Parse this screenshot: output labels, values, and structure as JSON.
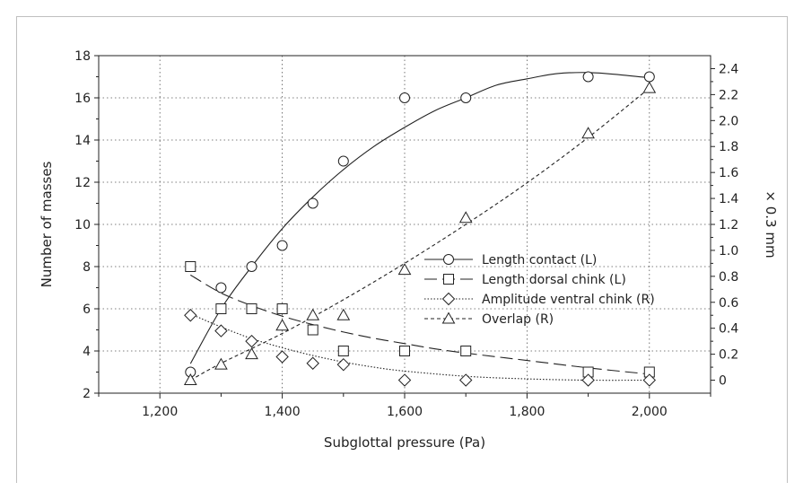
{
  "chart_data": {
    "type": "line",
    "xlabel": "Subglottal pressure (Pa)",
    "ylabel": "Number of masses",
    "y2label": "× 0.3 mm",
    "xlim": [
      1100,
      2100
    ],
    "ylim": [
      2,
      18
    ],
    "y2lim": [
      -0.1,
      2.5
    ],
    "xticks": [
      1200,
      1400,
      1600,
      1800,
      2000
    ],
    "xtick_labels": [
      "1,200",
      "1,400",
      "1,600",
      "1,800",
      "2,000"
    ],
    "yticks": [
      2,
      4,
      6,
      8,
      10,
      12,
      14,
      16,
      18
    ],
    "y2ticks": [
      0,
      0.2,
      0.4,
      0.6,
      0.8,
      1.0,
      1.2,
      1.4,
      1.6,
      1.8,
      2.0,
      2.2,
      2.4
    ],
    "y2tick_labels": [
      "0",
      "0.2",
      "0.4",
      "0.6",
      "0.8",
      "1.0",
      "1.2",
      "1.4",
      "1.6",
      "1.8",
      "2.0",
      "2.2",
      "2.4"
    ],
    "grid": true,
    "legend_position": "right",
    "series": [
      {
        "name": "Length contact (L)",
        "axis": "left",
        "marker": "circle",
        "line": "solid",
        "points": [
          [
            1250,
            3
          ],
          [
            1300,
            7
          ],
          [
            1350,
            8
          ],
          [
            1400,
            9
          ],
          [
            1450,
            11
          ],
          [
            1500,
            13
          ],
          [
            1600,
            16
          ],
          [
            1700,
            16
          ],
          [
            1900,
            17
          ],
          [
            2000,
            17
          ]
        ],
        "fit": [
          [
            1250,
            3.4
          ],
          [
            1300,
            6.0
          ],
          [
            1350,
            8.0
          ],
          [
            1400,
            9.8
          ],
          [
            1450,
            11.3
          ],
          [
            1500,
            12.6
          ],
          [
            1550,
            13.7
          ],
          [
            1600,
            14.6
          ],
          [
            1650,
            15.4
          ],
          [
            1700,
            16.0
          ],
          [
            1750,
            16.6
          ],
          [
            1800,
            16.9
          ],
          [
            1850,
            17.15
          ],
          [
            1900,
            17.2
          ],
          [
            1950,
            17.1
          ],
          [
            2000,
            16.95
          ]
        ]
      },
      {
        "name": "Length dorsal chink (L)",
        "axis": "left",
        "marker": "square",
        "line": "dashed",
        "points": [
          [
            1250,
            8
          ],
          [
            1300,
            6
          ],
          [
            1350,
            6
          ],
          [
            1400,
            6
          ],
          [
            1450,
            5
          ],
          [
            1500,
            4
          ],
          [
            1600,
            4
          ],
          [
            1700,
            4
          ],
          [
            1900,
            3
          ],
          [
            2000,
            3
          ]
        ],
        "fit": [
          [
            1250,
            7.6
          ],
          [
            1300,
            6.75
          ],
          [
            1350,
            6.15
          ],
          [
            1400,
            5.65
          ],
          [
            1450,
            5.25
          ],
          [
            1500,
            4.9
          ],
          [
            1550,
            4.6
          ],
          [
            1600,
            4.35
          ],
          [
            1650,
            4.1
          ],
          [
            1700,
            3.9
          ],
          [
            1800,
            3.55
          ],
          [
            1900,
            3.2
          ],
          [
            2000,
            2.9
          ]
        ]
      },
      {
        "name": "Amplitude ventral chink (R)",
        "axis": "right",
        "marker": "diamond",
        "line": "dotted",
        "points": [
          [
            1250,
            0.5
          ],
          [
            1300,
            0.38
          ],
          [
            1350,
            0.3
          ],
          [
            1400,
            0.18
          ],
          [
            1450,
            0.13
          ],
          [
            1500,
            0.12
          ],
          [
            1600,
            0.0
          ],
          [
            1700,
            0.0
          ],
          [
            1900,
            0.0
          ],
          [
            2000,
            0.0
          ]
        ],
        "fit": [
          [
            1250,
            0.51
          ],
          [
            1300,
            0.41
          ],
          [
            1350,
            0.32
          ],
          [
            1400,
            0.25
          ],
          [
            1450,
            0.19
          ],
          [
            1500,
            0.14
          ],
          [
            1550,
            0.1
          ],
          [
            1600,
            0.07
          ],
          [
            1700,
            0.03
          ],
          [
            1800,
            0.01
          ],
          [
            1900,
            0.0
          ],
          [
            2000,
            0.0
          ]
        ]
      },
      {
        "name": "Overlap (R)",
        "axis": "right",
        "marker": "triangle",
        "line": "shortdash",
        "points": [
          [
            1250,
            0.0
          ],
          [
            1300,
            0.12
          ],
          [
            1350,
            0.2
          ],
          [
            1400,
            0.42
          ],
          [
            1450,
            0.5
          ],
          [
            1500,
            0.5
          ],
          [
            1600,
            0.85
          ],
          [
            1700,
            1.25
          ],
          [
            1900,
            1.9
          ],
          [
            2000,
            2.25
          ]
        ],
        "fit": [
          [
            1250,
            0.0
          ],
          [
            1300,
            0.13
          ],
          [
            1400,
            0.36
          ],
          [
            1500,
            0.62
          ],
          [
            1600,
            0.9
          ],
          [
            1700,
            1.2
          ],
          [
            1800,
            1.52
          ],
          [
            1900,
            1.87
          ],
          [
            2000,
            2.25
          ]
        ]
      }
    ]
  }
}
